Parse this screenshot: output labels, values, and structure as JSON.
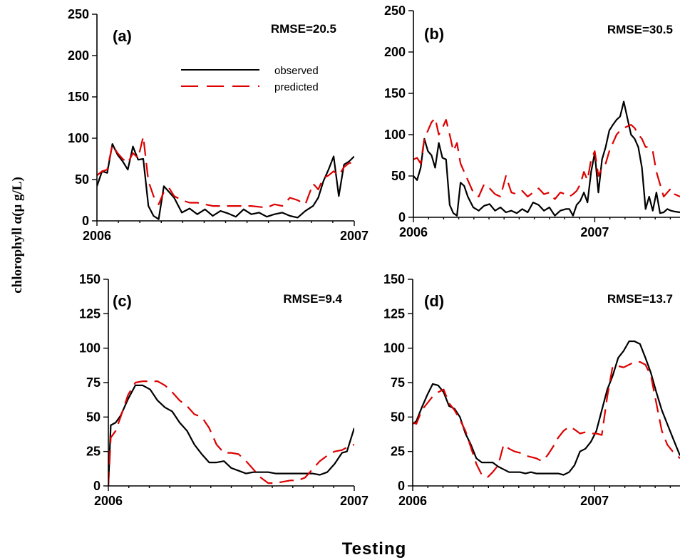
{
  "figure": {
    "ylabel": "chlorophyll α(μ g/L)",
    "xlabel": "Testing"
  },
  "legend": {
    "observed": "observed",
    "predicted": "predicted"
  },
  "colors": {
    "observed": "#000000",
    "predicted": "#dd0000"
  },
  "chart_data": [
    {
      "type": "line",
      "panel_label": "(a)",
      "annotation": "RMSE=20.5",
      "xlim": [
        2006.0,
        2007.0
      ],
      "ylim": [
        0,
        250
      ],
      "yticks": [
        0,
        50,
        100,
        150,
        200,
        250
      ],
      "xticks": [
        {
          "value": 2006.0,
          "label": "2006"
        },
        {
          "value": 2007.0,
          "label": "2007"
        }
      ],
      "series": [
        {
          "name": "observed",
          "x": [
            2006.0,
            2006.02,
            2006.04,
            2006.06,
            2006.08,
            2006.1,
            2006.12,
            2006.14,
            2006.16,
            2006.18,
            2006.2,
            2006.22,
            2006.24,
            2006.26,
            2006.28,
            2006.3,
            2006.33,
            2006.36,
            2006.39,
            2006.42,
            2006.45,
            2006.48,
            2006.51,
            2006.54,
            2006.57,
            2006.6,
            2006.63,
            2006.66,
            2006.69,
            2006.72,
            2006.75,
            2006.78,
            2006.81,
            2006.84,
            2006.86,
            2006.88,
            2006.9,
            2006.92,
            2006.94,
            2006.96,
            2006.98,
            2007.0
          ],
          "values": [
            42,
            60,
            58,
            93,
            80,
            72,
            62,
            90,
            74,
            75,
            18,
            6,
            2,
            42,
            35,
            28,
            10,
            15,
            8,
            14,
            6,
            12,
            9,
            5,
            14,
            8,
            10,
            5,
            8,
            10,
            6,
            4,
            12,
            18,
            28,
            48,
            62,
            78,
            30,
            68,
            72,
            78
          ]
        },
        {
          "name": "predicted",
          "x": [
            2006.0,
            2006.02,
            2006.04,
            2006.06,
            2006.08,
            2006.1,
            2006.12,
            2006.14,
            2006.16,
            2006.18,
            2006.2,
            2006.22,
            2006.24,
            2006.26,
            2006.28,
            2006.3,
            2006.33,
            2006.36,
            2006.39,
            2006.42,
            2006.45,
            2006.48,
            2006.51,
            2006.54,
            2006.57,
            2006.6,
            2006.63,
            2006.66,
            2006.69,
            2006.72,
            2006.75,
            2006.78,
            2006.81,
            2006.84,
            2006.86,
            2006.88,
            2006.9,
            2006.92,
            2006.94,
            2006.96,
            2006.98,
            2007.0
          ],
          "values": [
            55,
            60,
            62,
            92,
            82,
            75,
            70,
            82,
            76,
            102,
            48,
            30,
            20,
            35,
            40,
            30,
            25,
            22,
            22,
            20,
            18,
            18,
            18,
            18,
            18,
            18,
            17,
            16,
            20,
            18,
            28,
            25,
            20,
            45,
            38,
            52,
            55,
            60,
            55,
            65,
            70,
            70
          ]
        }
      ]
    },
    {
      "type": "line",
      "panel_label": "(b)",
      "annotation": "RMSE=30.5",
      "xlim": [
        2006.0,
        2007.47
      ],
      "ylim": [
        0,
        250
      ],
      "yticks": [
        0,
        50,
        100,
        150,
        200,
        250
      ],
      "xticks": [
        {
          "value": 2006.0,
          "label": "2006"
        },
        {
          "value": 2007.0,
          "label": "2007"
        }
      ],
      "series": [
        {
          "name": "observed",
          "x": [
            2006.0,
            2006.02,
            2006.04,
            2006.06,
            2006.08,
            2006.1,
            2006.12,
            2006.14,
            2006.16,
            2006.18,
            2006.2,
            2006.22,
            2006.24,
            2006.26,
            2006.28,
            2006.3,
            2006.33,
            2006.36,
            2006.39,
            2006.42,
            2006.45,
            2006.48,
            2006.51,
            2006.54,
            2006.57,
            2006.6,
            2006.63,
            2006.66,
            2006.69,
            2006.72,
            2006.75,
            2006.78,
            2006.81,
            2006.84,
            2006.86,
            2006.88,
            2006.9,
            2006.92,
            2006.94,
            2006.96,
            2006.98,
            2007.0,
            2007.02,
            2007.04,
            2007.06,
            2007.08,
            2007.1,
            2007.12,
            2007.14,
            2007.16,
            2007.18,
            2007.2,
            2007.22,
            2007.24,
            2007.26,
            2007.28,
            2007.3,
            2007.32,
            2007.34,
            2007.36,
            2007.38,
            2007.4,
            2007.42,
            2007.44,
            2007.47
          ],
          "values": [
            50,
            45,
            60,
            95,
            80,
            75,
            60,
            90,
            72,
            70,
            15,
            5,
            2,
            42,
            38,
            25,
            12,
            8,
            14,
            16,
            8,
            12,
            6,
            8,
            5,
            10,
            6,
            18,
            15,
            8,
            12,
            2,
            8,
            10,
            10,
            2,
            15,
            20,
            30,
            18,
            55,
            78,
            30,
            70,
            85,
            105,
            112,
            118,
            122,
            140,
            120,
            100,
            95,
            85,
            60,
            10,
            25,
            8,
            30,
            5,
            6,
            10,
            8,
            7,
            6
          ]
        },
        {
          "name": "predicted",
          "x": [
            2006.0,
            2006.02,
            2006.04,
            2006.06,
            2006.08,
            2006.1,
            2006.12,
            2006.14,
            2006.16,
            2006.18,
            2006.2,
            2006.22,
            2006.24,
            2006.26,
            2006.28,
            2006.3,
            2006.33,
            2006.36,
            2006.39,
            2006.42,
            2006.45,
            2006.48,
            2006.51,
            2006.54,
            2006.57,
            2006.6,
            2006.63,
            2006.66,
            2006.69,
            2006.72,
            2006.75,
            2006.78,
            2006.81,
            2006.84,
            2006.86,
            2006.88,
            2006.9,
            2006.92,
            2006.94,
            2006.96,
            2006.98,
            2007.0,
            2007.02,
            2007.04,
            2007.06,
            2007.08,
            2007.1,
            2007.12,
            2007.14,
            2007.16,
            2007.18,
            2007.2,
            2007.22,
            2007.24,
            2007.26,
            2007.28,
            2007.3,
            2007.32,
            2007.34,
            2007.36,
            2007.38,
            2007.4,
            2007.42,
            2007.44,
            2007.47
          ],
          "values": [
            70,
            72,
            65,
            95,
            105,
            115,
            120,
            100,
            108,
            118,
            100,
            80,
            90,
            65,
            55,
            45,
            30,
            25,
            40,
            35,
            28,
            25,
            50,
            30,
            28,
            32,
            25,
            30,
            35,
            28,
            30,
            22,
            30,
            28,
            25,
            28,
            32,
            40,
            55,
            45,
            70,
            80,
            50,
            60,
            65,
            80,
            90,
            100,
            105,
            108,
            110,
            112,
            108,
            100,
            95,
            85,
            85,
            80,
            55,
            40,
            25,
            30,
            35,
            28,
            25
          ]
        }
      ]
    },
    {
      "type": "line",
      "panel_label": "(c)",
      "annotation": "RMSE=9.4",
      "xlim": [
        2006.0,
        2007.0
      ],
      "ylim": [
        0,
        150
      ],
      "yticks": [
        0,
        25,
        50,
        75,
        100,
        125,
        150
      ],
      "xticks": [
        {
          "value": 2006.0,
          "label": "2006"
        },
        {
          "value": 2007.0,
          "label": "2007"
        }
      ],
      "series": [
        {
          "name": "observed",
          "x": [
            2006.0,
            2006.01,
            2006.03,
            2006.05,
            2006.08,
            2006.11,
            2006.14,
            2006.17,
            2006.2,
            2006.23,
            2006.26,
            2006.29,
            2006.32,
            2006.35,
            2006.38,
            2006.41,
            2006.44,
            2006.47,
            2006.5,
            2006.53,
            2006.56,
            2006.59,
            2006.62,
            2006.65,
            2006.68,
            2006.71,
            2006.74,
            2006.77,
            2006.8,
            2006.83,
            2006.86,
            2006.89,
            2006.92,
            2006.95,
            2006.97,
            2007.0
          ],
          "values": [
            0,
            44,
            46,
            51,
            63,
            73,
            73,
            70,
            62,
            57,
            54,
            46,
            40,
            30,
            23,
            17,
            17,
            18,
            13,
            11,
            9,
            10,
            10,
            10,
            9,
            9,
            9,
            9,
            9,
            9,
            8,
            10,
            16,
            24,
            25,
            42
          ]
        },
        {
          "name": "predicted",
          "x": [
            2006.0,
            2006.01,
            2006.03,
            2006.05,
            2006.08,
            2006.11,
            2006.14,
            2006.17,
            2006.2,
            2006.23,
            2006.26,
            2006.29,
            2006.32,
            2006.35,
            2006.38,
            2006.41,
            2006.44,
            2006.47,
            2006.5,
            2006.53,
            2006.56,
            2006.59,
            2006.62,
            2006.65,
            2006.68,
            2006.71,
            2006.74,
            2006.77,
            2006.8,
            2006.83,
            2006.86,
            2006.89,
            2006.92,
            2006.95,
            2006.97,
            2007.0
          ],
          "values": [
            0,
            35,
            40,
            50,
            66,
            75,
            76,
            76,
            76,
            73,
            68,
            62,
            58,
            52,
            50,
            42,
            30,
            24,
            24,
            23,
            18,
            12,
            6,
            2,
            2,
            3,
            4,
            4,
            6,
            12,
            18,
            22,
            25,
            26,
            28,
            30
          ]
        }
      ]
    },
    {
      "type": "line",
      "panel_label": "(d)",
      "annotation": "RMSE=13.7",
      "xlim": [
        2006.0,
        2007.47
      ],
      "ylim": [
        0,
        150
      ],
      "yticks": [
        0,
        25,
        50,
        75,
        100,
        125,
        150
      ],
      "xticks": [
        {
          "value": 2006.0,
          "label": "2006"
        },
        {
          "value": 2007.0,
          "label": "2007"
        }
      ],
      "series": [
        {
          "name": "observed",
          "x": [
            2006.0,
            2006.02,
            2006.05,
            2006.08,
            2006.11,
            2006.14,
            2006.17,
            2006.2,
            2006.23,
            2006.26,
            2006.29,
            2006.32,
            2006.35,
            2006.38,
            2006.41,
            2006.44,
            2006.47,
            2006.5,
            2006.53,
            2006.56,
            2006.59,
            2006.62,
            2006.65,
            2006.68,
            2006.71,
            2006.74,
            2006.77,
            2006.8,
            2006.83,
            2006.86,
            2006.89,
            2006.92,
            2006.95,
            2006.98,
            2007.01,
            2007.04,
            2007.07,
            2007.1,
            2007.13,
            2007.16,
            2007.19,
            2007.22,
            2007.25,
            2007.28,
            2007.31,
            2007.34,
            2007.37,
            2007.4,
            2007.43,
            2007.47
          ],
          "values": [
            45,
            47,
            57,
            66,
            74,
            73,
            68,
            58,
            56,
            50,
            38,
            30,
            20,
            17,
            17,
            17,
            14,
            12,
            10,
            10,
            10,
            9,
            10,
            9,
            9,
            9,
            9,
            9,
            8,
            10,
            15,
            25,
            27,
            32,
            40,
            55,
            70,
            80,
            93,
            98,
            105,
            105,
            103,
            93,
            82,
            68,
            55,
            45,
            35,
            22
          ]
        },
        {
          "name": "predicted",
          "x": [
            2006.0,
            2006.02,
            2006.05,
            2006.08,
            2006.11,
            2006.14,
            2006.17,
            2006.2,
            2006.23,
            2006.26,
            2006.29,
            2006.32,
            2006.35,
            2006.38,
            2006.41,
            2006.44,
            2006.47,
            2006.5,
            2006.53,
            2006.56,
            2006.59,
            2006.62,
            2006.65,
            2006.68,
            2006.71,
            2006.74,
            2006.77,
            2006.8,
            2006.83,
            2006.86,
            2006.89,
            2006.92,
            2006.95,
            2006.98,
            2007.01,
            2007.04,
            2007.07,
            2007.1,
            2007.13,
            2007.16,
            2007.19,
            2007.22,
            2007.25,
            2007.28,
            2007.31,
            2007.34,
            2007.37,
            2007.4,
            2007.43,
            2007.47
          ],
          "values": [
            46,
            45,
            55,
            60,
            65,
            68,
            70,
            60,
            55,
            48,
            40,
            28,
            16,
            8,
            6,
            10,
            15,
            30,
            27,
            25,
            24,
            22,
            21,
            20,
            18,
            22,
            28,
            35,
            40,
            43,
            41,
            38,
            39,
            38,
            38,
            37,
            65,
            87,
            87,
            86,
            88,
            90,
            90,
            88,
            80,
            60,
            40,
            30,
            25,
            20
          ]
        }
      ]
    }
  ]
}
